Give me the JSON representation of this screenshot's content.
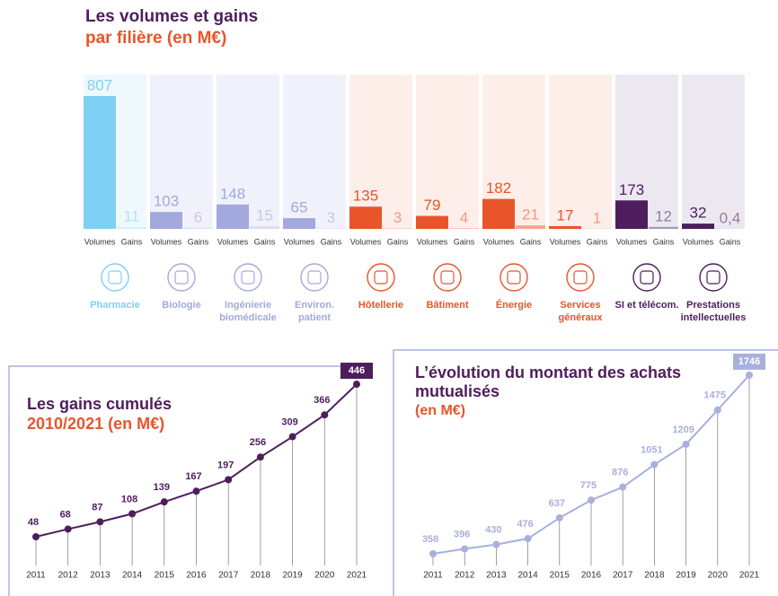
{
  "chart_data": [
    {
      "type": "grouped_bar",
      "title": "Les volumes et gains",
      "subtitle": "par filière (en M€)",
      "categories": [
        "Pharmacie",
        "Biologie",
        "Ingénierie biomédicale",
        "Environ. patient",
        "Hôtellerie",
        "Bâtiment",
        "Énergie",
        "Services généraux",
        "SI et télécom.",
        "Prestations intellectuelles"
      ],
      "series": [
        {
          "name": "Volumes",
          "values": [
            807,
            103,
            148,
            65,
            135,
            79,
            182,
            17,
            173,
            32
          ]
        },
        {
          "name": "Gains",
          "values": [
            11,
            6,
            15,
            3,
            3,
            4,
            21,
            1,
            12,
            0.4
          ],
          "value_labels": [
            "11",
            "6",
            "15",
            "3",
            "3",
            "4",
            "21",
            "1",
            "12",
            "0,4"
          ]
        }
      ],
      "colors": [
        "#7fd0f5",
        "#a3a9dc",
        "#a3a9dc",
        "#a3a9dc",
        "#e8552a",
        "#e8552a",
        "#e8552a",
        "#e8552a",
        "#4e1e5c",
        "#4e1e5c"
      ],
      "gain_colors": [
        "#d5eefb",
        "#d9dcf2",
        "#d9dcf2",
        "#d9dcf2",
        "#f5b4a0",
        "#f5b4a0",
        "#f3a58d",
        "#f5b4a0",
        "#a898b8",
        "#a898b8"
      ],
      "panel_colors": [
        "#eef8fd",
        "#f0f1fa",
        "#f0f1fa",
        "#f0f1fa",
        "#fdeee9",
        "#fdeee9",
        "#fdeee9",
        "#fdeee9",
        "#ece8f0",
        "#ece8f0"
      ]
    },
    {
      "type": "line",
      "title": "Les gains cumulés",
      "subtitle": "2010/2021 (en M€)",
      "color": "#4e1e5c",
      "categories": [
        "2011",
        "2012",
        "2013",
        "2014",
        "2015",
        "2016",
        "2017",
        "2018",
        "2019",
        "2020",
        "2021"
      ],
      "values": [
        48,
        68,
        87,
        108,
        139,
        167,
        197,
        256,
        309,
        366,
        446
      ],
      "highlight_last": true
    },
    {
      "type": "line",
      "title": "L’évolution du montant des achats mutualisés",
      "subtitle": "(en M€)",
      "color": "#a8b0dc",
      "categories": [
        "2011",
        "2012",
        "2013",
        "2014",
        "2015",
        "2016",
        "2017",
        "2018",
        "2019",
        "2020",
        "2021"
      ],
      "values": [
        358,
        396,
        430,
        476,
        637,
        775,
        876,
        1051,
        1209,
        1475,
        1746
      ],
      "highlight_last": true
    }
  ]
}
